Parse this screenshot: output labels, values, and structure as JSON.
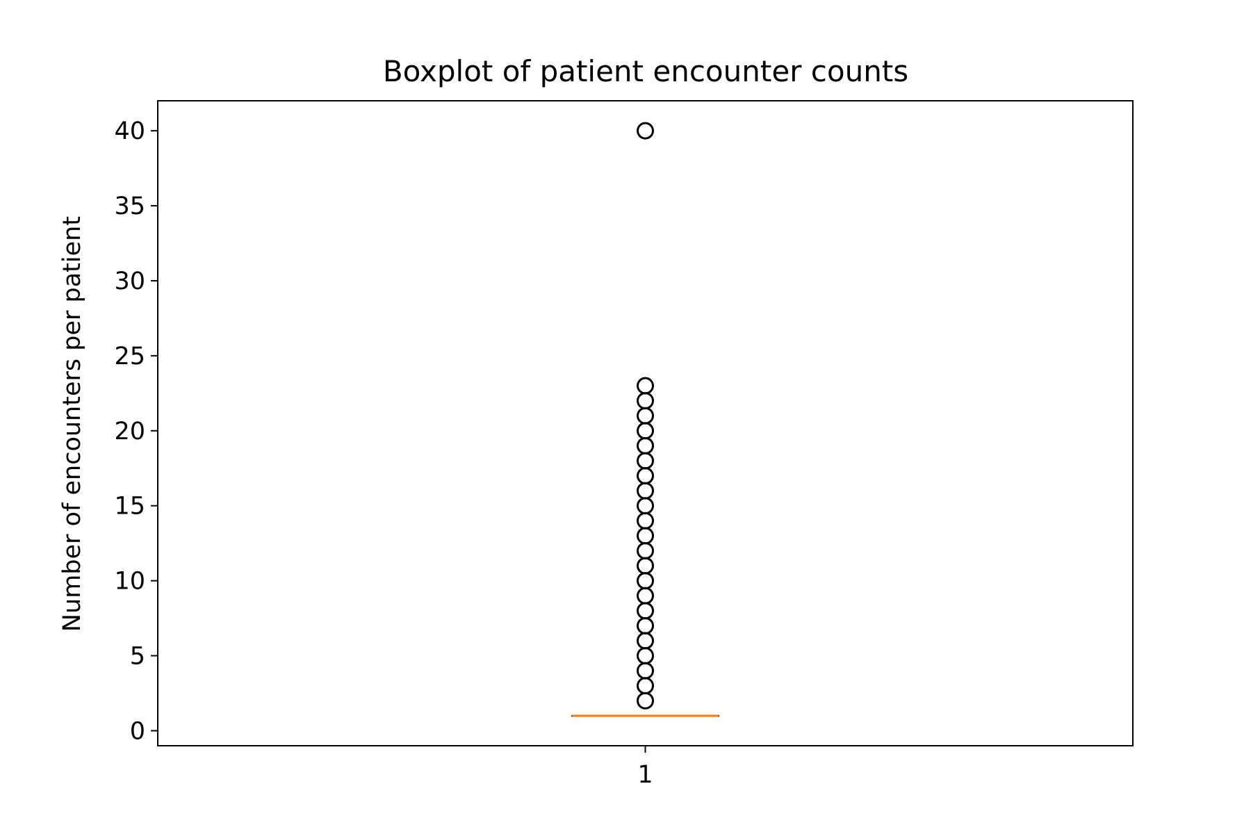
{
  "chart_data": {
    "type": "boxplot",
    "title": "Boxplot of patient encounter counts",
    "xlabel": "",
    "ylabel": "Number of encounters per patient",
    "categories": [
      "1"
    ],
    "ylim": [
      -1,
      42
    ],
    "yticks": [
      0,
      5,
      10,
      15,
      20,
      25,
      30,
      35,
      40
    ],
    "grid": false,
    "legend": "none",
    "boxes": [
      {
        "category": "1",
        "whisker_low": 1,
        "q1": 1,
        "median": 1,
        "q3": 1,
        "whisker_high": 1,
        "outliers": [
          2,
          3,
          4,
          5,
          6,
          7,
          8,
          9,
          10,
          11,
          12,
          13,
          14,
          15,
          16,
          17,
          18,
          19,
          20,
          21,
          22,
          23,
          40
        ]
      }
    ],
    "colors": {
      "box": "#000000",
      "median": "#ff7f0e",
      "outlier_edge": "#000000"
    }
  }
}
